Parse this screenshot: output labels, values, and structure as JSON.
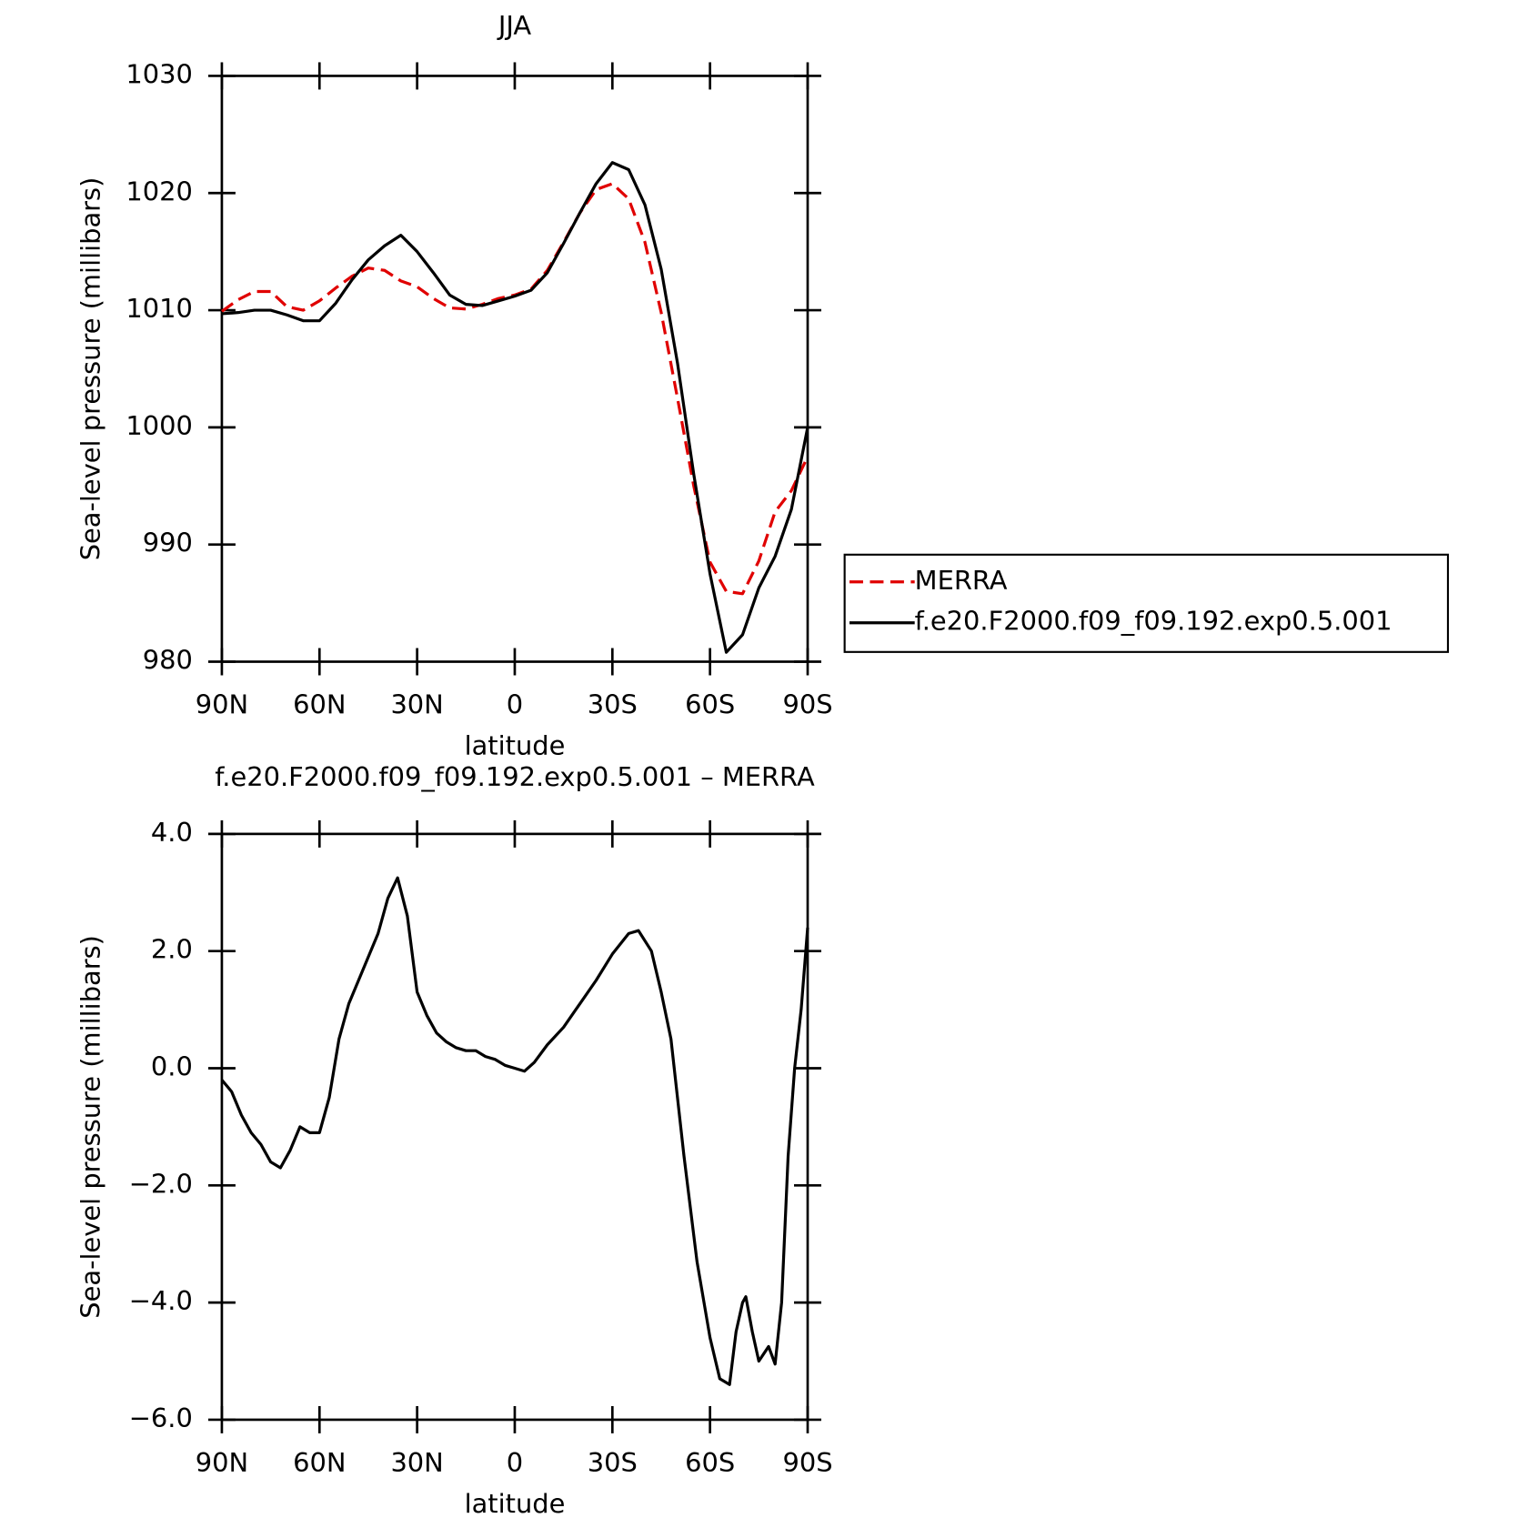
{
  "chart_data": [
    {
      "type": "line",
      "title": "JJA",
      "xlabel": "latitude",
      "ylabel": "Sea-level pressure (millibars)",
      "x": [
        90,
        85,
        80,
        75,
        70,
        65,
        60,
        55,
        50,
        45,
        40,
        35,
        30,
        25,
        20,
        15,
        10,
        5,
        0,
        -5,
        -10,
        -15,
        -20,
        -25,
        -30,
        -35,
        -40,
        -45,
        -50,
        -55,
        -60,
        -65,
        -70,
        -75,
        -80,
        -85,
        -90
      ],
      "series": [
        {
          "name": "MERRA",
          "color": "#e00000",
          "linestyle": "dashed",
          "values": [
            1009.9,
            1010.9,
            1011.6,
            1011.6,
            1010.3,
            1010.0,
            1010.8,
            1011.9,
            1012.9,
            1013.6,
            1013.4,
            1012.5,
            1012.0,
            1011.0,
            1010.2,
            1010.1,
            1010.5,
            1011.0,
            1011.3,
            1011.8,
            1013.4,
            1015.8,
            1018.3,
            1020.3,
            1020.8,
            1019.5,
            1015.8,
            1009.8,
            1002.5,
            995.0,
            988.5,
            986.0,
            985.8,
            988.6,
            992.8,
            994.6,
            997.5
          ]
        },
        {
          "name": "f.e20.F2000.f09_f09.192.exp0.5.001",
          "color": "#000000",
          "linestyle": "solid",
          "values": [
            1009.7,
            1009.8,
            1010.0,
            1010.0,
            1009.6,
            1009.1,
            1009.1,
            1010.6,
            1012.6,
            1014.3,
            1015.5,
            1016.4,
            1015.0,
            1013.2,
            1011.3,
            1010.5,
            1010.4,
            1010.8,
            1011.2,
            1011.7,
            1013.2,
            1015.7,
            1018.3,
            1020.8,
            1022.6,
            1022.0,
            1019.0,
            1013.5,
            1005.5,
            996.0,
            987.5,
            980.8,
            982.3,
            986.3,
            989.0,
            993.0,
            1000.0
          ]
        }
      ],
      "xlim": [
        90,
        -90
      ],
      "xticks": [
        {
          "value": 90,
          "label": "90N"
        },
        {
          "value": 60,
          "label": "60N"
        },
        {
          "value": 30,
          "label": "30N"
        },
        0,
        {
          "value": -30,
          "label": "30S"
        },
        {
          "value": -60,
          "label": "60S"
        },
        {
          "value": -90,
          "label": "90S"
        }
      ],
      "ylim": [
        980,
        1030
      ],
      "yticks": [
        980,
        990,
        1000,
        1010,
        1020,
        1030
      ],
      "legend": "right",
      "grid": false
    },
    {
      "type": "line",
      "title": "f.e20.F2000.f09_f09.192.exp0.5.001 – MERRA",
      "xlabel": "latitude",
      "ylabel": "Sea-level pressure (millibars)",
      "x": [
        90,
        87,
        84,
        81,
        78,
        75,
        72,
        69,
        66,
        63,
        60,
        57,
        54,
        51,
        48,
        45,
        42,
        39,
        36,
        33,
        30,
        27,
        24,
        21,
        18,
        15,
        12,
        9,
        6,
        3,
        0,
        -3,
        -6,
        -10,
        -15,
        -20,
        -25,
        -30,
        -35,
        -38,
        -42,
        -45,
        -48,
        -52,
        -56,
        -60,
        -63,
        -66,
        -68,
        -70,
        -71,
        -73,
        -75,
        -78,
        -80,
        -82,
        -84,
        -86,
        -88,
        -90
      ],
      "series": [
        {
          "color": "#000000",
          "linestyle": "solid",
          "values": [
            -0.2,
            -0.4,
            -0.8,
            -1.1,
            -1.3,
            -1.6,
            -1.7,
            -1.4,
            -1.0,
            -1.1,
            -1.1,
            -0.5,
            0.5,
            1.1,
            1.5,
            1.9,
            2.3,
            2.9,
            3.25,
            2.6,
            1.3,
            0.9,
            0.6,
            0.45,
            0.35,
            0.3,
            0.3,
            0.2,
            0.15,
            0.05,
            0.0,
            -0.05,
            0.1,
            0.4,
            0.7,
            1.1,
            1.5,
            1.95,
            2.3,
            2.35,
            2.0,
            1.3,
            0.5,
            -1.5,
            -3.3,
            -4.6,
            -5.3,
            -5.4,
            -4.5,
            -4.0,
            -3.9,
            -4.5,
            -5.0,
            -4.75,
            -5.05,
            -4.0,
            -1.5,
            0.0,
            1.0,
            2.4
          ]
        }
      ],
      "xlim": [
        90,
        -90
      ],
      "xticks": [
        {
          "value": 90,
          "label": "90N"
        },
        {
          "value": 60,
          "label": "60N"
        },
        {
          "value": 30,
          "label": "30N"
        },
        0,
        {
          "value": -30,
          "label": "30S"
        },
        {
          "value": -60,
          "label": "60S"
        },
        {
          "value": -90,
          "label": "90S"
        }
      ],
      "ylim": [
        -6,
        4
      ],
      "yticks": [
        {
          "value": -6,
          "label": "−6.0"
        },
        {
          "value": -4,
          "label": "−4.0"
        },
        {
          "value": -2,
          "label": "−2.0"
        },
        {
          "value": 0,
          "label": "0.0"
        },
        {
          "value": 2,
          "label": "2.0"
        },
        {
          "value": 4,
          "label": "4.0"
        }
      ],
      "grid": false
    }
  ]
}
